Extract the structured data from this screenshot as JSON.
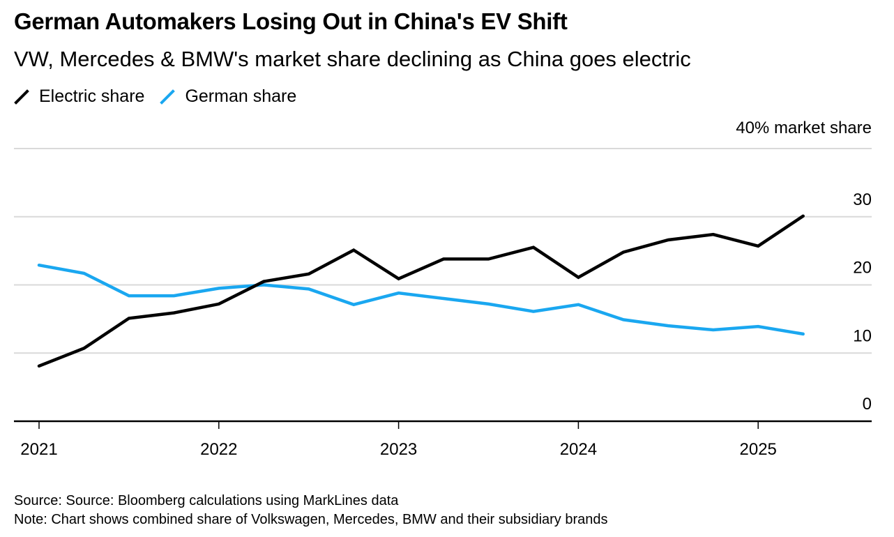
{
  "header": {
    "title": "German Automakers Losing Out in China's EV Shift",
    "subtitle": "VW, Mercedes & BMW's market share declining as China goes electric"
  },
  "legend": [
    {
      "label": "Electric share",
      "color": "#000000"
    },
    {
      "label": "German share",
      "color": "#1aa7f0"
    }
  ],
  "footer": {
    "source": "Source: Source: Bloomberg calculations using MarkLines data",
    "note": "Note: Chart shows combined share of Volkswagen, Mercedes, BMW and their subsidiary brands"
  },
  "chart_data": {
    "type": "line",
    "title": "German Automakers Losing Out in China's EV Shift",
    "subtitle": "VW, Mercedes & BMW's market share declining as China goes electric",
    "xlabel": "",
    "ylabel": "40% market share",
    "ylim": [
      0,
      40
    ],
    "yticks": [
      0,
      10,
      20,
      30,
      40
    ],
    "ytick_labels": [
      "0",
      "10",
      "20",
      "30",
      "40% market share"
    ],
    "xlim": [
      2021.0,
      2025.75
    ],
    "xticks": [
      2021,
      2022,
      2023,
      2024,
      2025
    ],
    "xtick_labels": [
      "2021",
      "2022",
      "2023",
      "2024",
      "2025"
    ],
    "grid": true,
    "legend_position": "top-left",
    "x": [
      2021.0,
      2021.25,
      2021.5,
      2021.75,
      2022.0,
      2022.25,
      2022.5,
      2022.75,
      2023.0,
      2023.25,
      2023.5,
      2023.75,
      2024.0,
      2024.25,
      2024.5,
      2024.75,
      2025.0,
      2025.25
    ],
    "series": [
      {
        "name": "Electric share",
        "color": "#000000",
        "values": [
          8.1,
          10.7,
          15.1,
          15.9,
          17.2,
          20.5,
          21.6,
          25.1,
          20.9,
          23.8,
          23.8,
          25.5,
          21.1,
          24.8,
          26.6,
          27.4,
          25.7,
          30.1
        ]
      },
      {
        "name": "German share",
        "color": "#1aa7f0",
        "values": [
          22.9,
          21.7,
          18.4,
          18.4,
          19.5,
          20.0,
          19.4,
          17.1,
          18.8,
          18.0,
          17.2,
          16.1,
          17.1,
          14.9,
          14.0,
          13.4,
          13.9,
          12.8
        ]
      }
    ]
  }
}
